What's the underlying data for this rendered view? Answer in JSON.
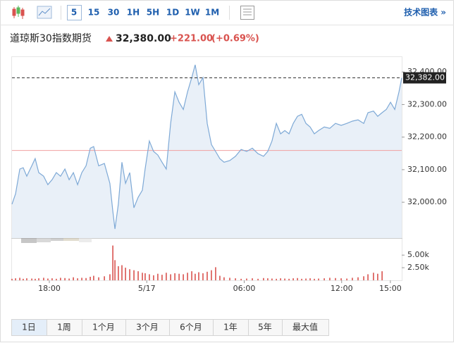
{
  "toolbar": {
    "intervals": [
      "5",
      "15",
      "30",
      "1H",
      "5H",
      "1D",
      "1W",
      "1M"
    ],
    "technical_link": "技术图表 »"
  },
  "quote": {
    "name": "道琼斯30指数期货",
    "price": "32,380.00",
    "change": "+221.00",
    "change_pct": "(+0.69%)"
  },
  "ranges": [
    "1日",
    "1周",
    "1个月",
    "3个月",
    "6个月",
    "1年",
    "5年",
    "最大值"
  ],
  "chart_data": [
    {
      "type": "line",
      "color": "#7ea9d6",
      "fill": "#e9f0f8",
      "x": [
        15.7,
        15.92,
        16.18,
        16.39,
        16.61,
        16.92,
        17.13,
        17.35,
        17.65,
        17.91,
        18.17,
        18.43,
        18.69,
        18.96,
        19.22,
        19.48,
        19.74,
        20.0,
        20.26,
        20.52,
        20.73,
        21.04,
        21.39,
        21.73,
        21.91,
        22.04,
        22.25,
        22.47,
        22.69,
        22.95,
        23.21,
        23.47,
        23.73,
        23.9,
        24.16,
        24.42,
        24.68,
        24.94,
        25.2,
        25.47,
        25.73,
        25.99,
        26.25,
        26.51,
        26.77,
        26.98,
        27.2,
        27.46,
        27.72,
        27.98,
        28.24,
        28.5,
        28.76,
        29.11,
        29.46,
        29.81,
        30.15,
        30.5,
        30.85,
        31.19,
        31.45,
        31.71,
        31.98,
        32.24,
        32.5,
        32.76,
        33.02,
        33.28,
        33.54,
        33.8,
        34.06,
        34.32,
        34.58,
        34.93,
        35.27,
        35.62,
        35.97,
        36.32,
        36.66,
        37.01,
        37.36,
        37.62,
        37.96,
        38.22,
        38.49,
        38.75,
        39.01,
        39.27,
        39.53,
        39.7
      ],
      "values": [
        31994,
        32026,
        32102,
        32106,
        32080,
        32112,
        32134,
        32091,
        32080,
        32054,
        32069,
        32091,
        32080,
        32102,
        32069,
        32091,
        32054,
        32091,
        32112,
        32166,
        32171,
        32112,
        32119,
        32058,
        31972,
        31918,
        31994,
        32123,
        32058,
        32091,
        31983,
        32015,
        32037,
        32102,
        32188,
        32156,
        32145,
        32123,
        32102,
        32242,
        32339,
        32307,
        32285,
        32339,
        32383,
        32422,
        32361,
        32383,
        32242,
        32177,
        32156,
        32134,
        32123,
        32128,
        32141,
        32162,
        32156,
        32166,
        32149,
        32141,
        32156,
        32188,
        32242,
        32210,
        32220,
        32210,
        32242,
        32264,
        32270,
        32242,
        32231,
        32210,
        32220,
        32231,
        32227,
        32242,
        32236,
        32242,
        32249,
        32253,
        32242,
        32275,
        32280,
        32264,
        32275,
        32285,
        32307,
        32285,
        32339,
        32382
      ],
      "xlim": [
        15.7,
        39.7
      ],
      "xticks": [
        {
          "value": 18,
          "label": "18:00"
        },
        {
          "value": 24,
          "label": "5/17"
        },
        {
          "value": 30,
          "label": "06:00"
        },
        {
          "value": 36,
          "label": "12:00"
        },
        {
          "value": 39,
          "label": "15:00"
        }
      ],
      "ylim": [
        31890,
        32448
      ],
      "yticks": [
        {
          "value": 32000,
          "label": "32,000.00"
        },
        {
          "value": 32100,
          "label": "32,100.00"
        },
        {
          "value": 32200,
          "label": "32,200.00"
        },
        {
          "value": 32300,
          "label": "32,300.00"
        },
        {
          "value": 32400,
          "label": "32,400.00"
        }
      ],
      "last_price": {
        "value": 32382,
        "label": "32,382.00"
      },
      "reference_line": 32159,
      "reference_color": "#f0a0a0"
    },
    {
      "type": "bar",
      "color": "#d9534f",
      "values": [
        300,
        400,
        500,
        300,
        400,
        350,
        300,
        400,
        500,
        350,
        400,
        300,
        500,
        450,
        350,
        600,
        400,
        500,
        450,
        700,
        900,
        600,
        800,
        1200,
        6900,
        4000,
        2800,
        3000,
        2500,
        2200,
        2000,
        1800,
        1500,
        1400,
        1200,
        1000,
        1300,
        1100,
        1500,
        1200,
        1400,
        1300,
        1200,
        1500,
        1800,
        1300,
        1600,
        1400,
        1700,
        2000,
        2600,
        900,
        600,
        500,
        400,
        300,
        350,
        400,
        300,
        450,
        400,
        350,
        300,
        400,
        350,
        300,
        400,
        450,
        300,
        350,
        400,
        300,
        350,
        400,
        500,
        450,
        400,
        350,
        500,
        600,
        800,
        1200,
        1500,
        1300,
        1800
      ],
      "ylim": [
        0,
        7400
      ],
      "yticks": [
        {
          "value": 2500,
          "label": "2.50k"
        },
        {
          "value": 5000,
          "label": "5.00k"
        }
      ]
    }
  ]
}
